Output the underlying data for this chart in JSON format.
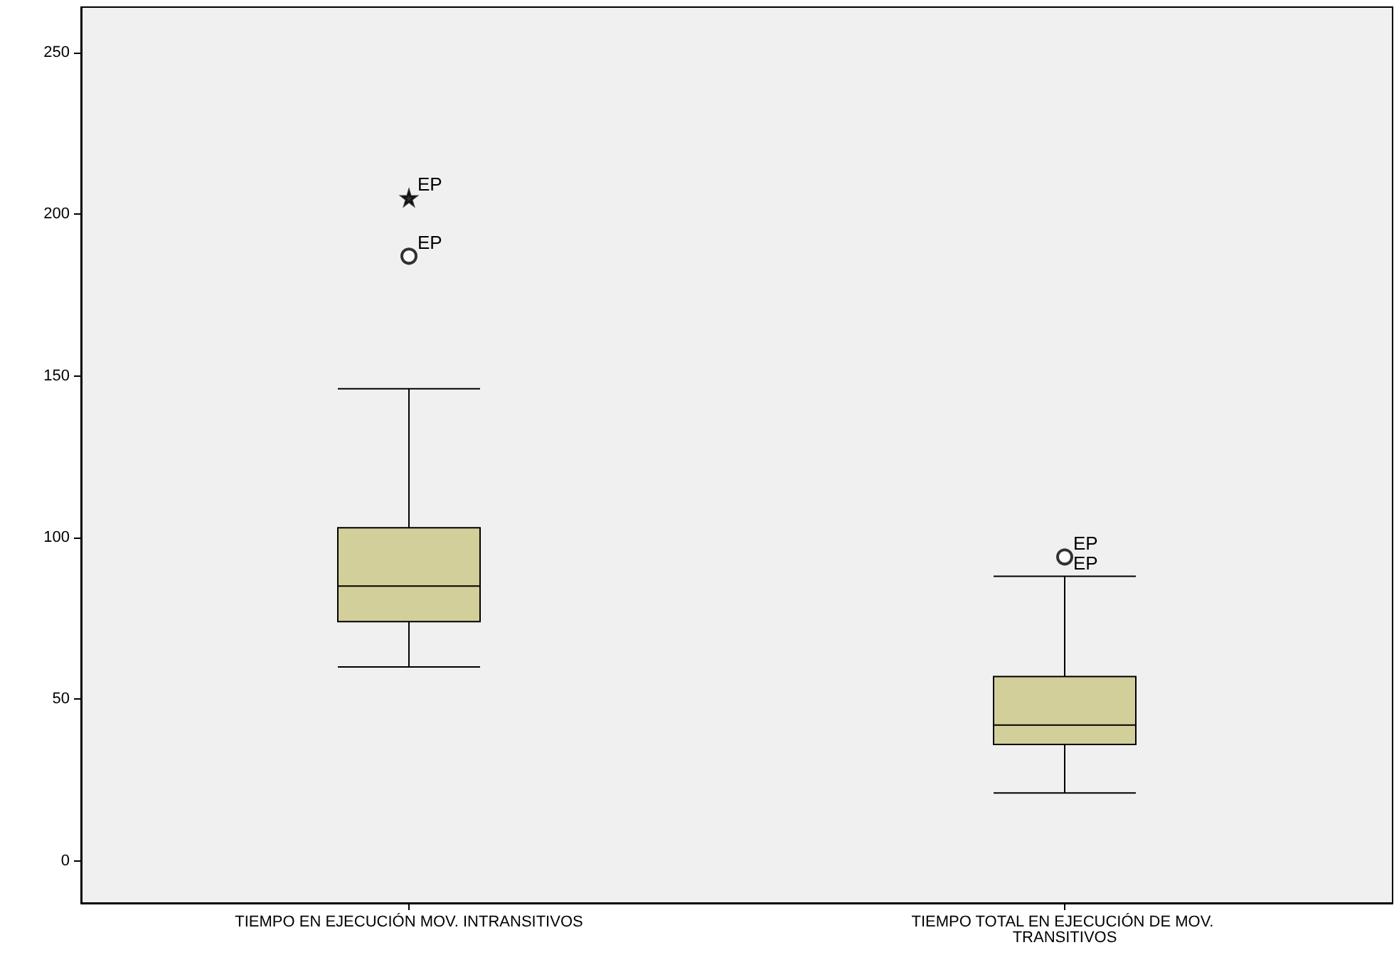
{
  "chart_data": {
    "type": "box",
    "categories": [
      "TIEMPO EN EJECUCIÓN MOV. INTRANSITIVOS",
      "TIEMPO TOTAL EN EJECUCIÓN DE MOV. TRANSITIVOS"
    ],
    "series": [
      {
        "type": "box",
        "color": "#d3cf9a",
        "boxes": [
          {
            "low": 60,
            "q1": 74,
            "median": 85,
            "q3": 103,
            "high": 146
          },
          {
            "low": 21,
            "q1": 36,
            "median": 42,
            "q3": 57,
            "high": 88
          }
        ]
      },
      {
        "type": "scatter",
        "color": "#000000",
        "marker": "circle",
        "x": [
          "TIEMPO EN EJECUCIÓN MOV. INTRANSITIVOS",
          "TIEMPO TOTAL EN EJECUCIÓN DE MOV. TRANSITIVOS"
        ],
        "values": [
          187,
          94
        ]
      },
      {
        "type": "scatter",
        "color": "#000000",
        "marker": "star",
        "x": [
          "TIEMPO EN EJECUCIÓN MOV. INTRANSITIVOS"
        ],
        "values": [
          205
        ]
      }
    ],
    "ylim": [
      -13,
      264
    ],
    "yticks": [
      0,
      50,
      100,
      150,
      200,
      250
    ],
    "grid": false,
    "annotations": [
      {
        "text": "EP",
        "x": "TIEMPO EN EJECUCIÓN MOV. INTRANSITIVOS",
        "y": 205
      },
      {
        "text": "EP",
        "x": "TIEMPO EN EJECUCIÓN MOV. INTRANSITIVOS",
        "y": 187
      },
      {
        "text": "EP",
        "x": "TIEMPO TOTAL EN EJECUCIÓN DE MOV. TRANSITIVOS",
        "y": 94
      },
      {
        "text": "EP",
        "x": "TIEMPO TOTAL EN EJECUCIÓN DE MOV. TRANSITIVOS",
        "y": 88
      }
    ]
  }
}
